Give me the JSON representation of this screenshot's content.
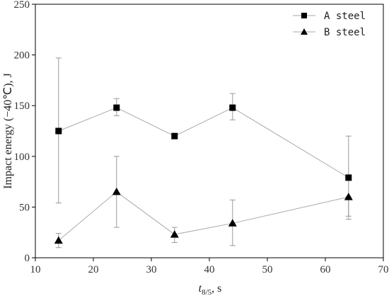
{
  "chart_data": {
    "type": "line",
    "xlabel": {
      "var": "t",
      "sub": "8/5",
      "rest": ", s"
    },
    "ylabel": "Impact energy (−40℃), J",
    "xlim": [
      10,
      70
    ],
    "ylim": [
      0,
      250
    ],
    "xticks": [
      "10",
      "20",
      "30",
      "40",
      "50",
      "60",
      "70"
    ],
    "yticks": [
      "0",
      "50",
      "100",
      "150",
      "200",
      "250"
    ],
    "legend_position": "top-right",
    "series": [
      {
        "name": "A steel",
        "marker": "square",
        "color": "#000000",
        "line_color": "#aaaaaa",
        "x": [
          14,
          24,
          34,
          44,
          64
        ],
        "y": [
          125,
          148,
          120,
          148,
          79
        ],
        "err_low": [
          54,
          140,
          120,
          136,
          38
        ],
        "err_high": [
          197,
          157,
          120,
          162,
          120
        ]
      },
      {
        "name": "B steel",
        "marker": "triangle",
        "color": "#000000",
        "line_color": "#aaaaaa",
        "x": [
          14,
          24,
          34,
          44,
          64
        ],
        "y": [
          17,
          65,
          23,
          34,
          60
        ],
        "err_low": [
          10,
          30,
          15,
          12,
          41
        ],
        "err_high": [
          24,
          100,
          30,
          57,
          60
        ]
      }
    ]
  }
}
